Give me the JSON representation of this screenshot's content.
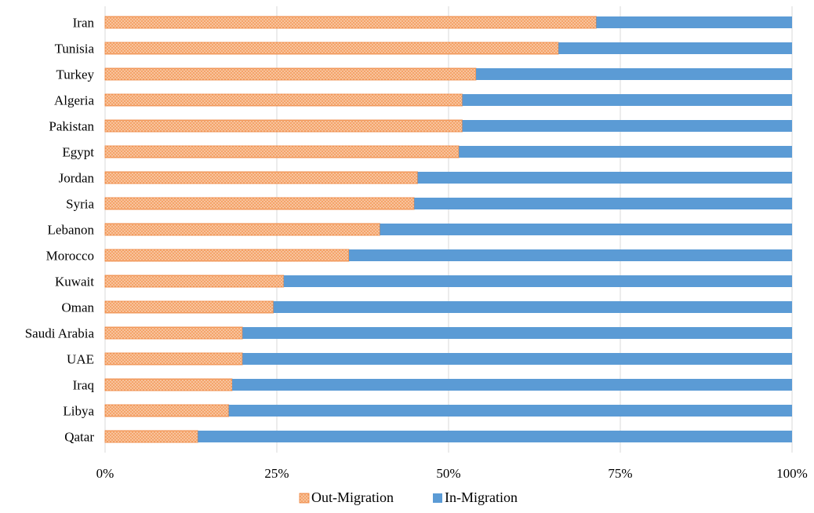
{
  "chart_data": {
    "type": "bar",
    "orientation": "horizontal",
    "stacked": "percent",
    "categories": [
      "Iran",
      "Tunisia",
      "Turkey",
      "Algeria",
      "Pakistan",
      "Egypt",
      "Jordan",
      "Syria",
      "Lebanon",
      "Morocco",
      "Kuwait",
      "Oman",
      "Saudi Arabia",
      "UAE",
      "Iraq",
      "Libya",
      "Qatar"
    ],
    "series": [
      {
        "name": "Out-Migration",
        "color": "#f4a46a",
        "pattern": "dotted-orange",
        "values": [
          71.5,
          66,
          54,
          52,
          52,
          51.5,
          45.5,
          45,
          40,
          35.5,
          26,
          24.5,
          20,
          20,
          18.5,
          18,
          13.5
        ]
      },
      {
        "name": "In-Migration",
        "color": "#5b9bd5",
        "values": [
          28.5,
          34,
          46,
          48,
          48,
          48.5,
          54.5,
          55,
          60,
          64.5,
          74,
          75.5,
          80,
          80,
          81.5,
          82,
          86.5
        ]
      }
    ],
    "xlim": [
      0,
      100
    ],
    "xticks": [
      "0%",
      "25%",
      "50%",
      "75%",
      "100%"
    ],
    "xtick_values": [
      0,
      25,
      50,
      75,
      100
    ],
    "grid": true,
    "legend_position": "bottom",
    "title": "",
    "xlabel": "",
    "ylabel": ""
  }
}
